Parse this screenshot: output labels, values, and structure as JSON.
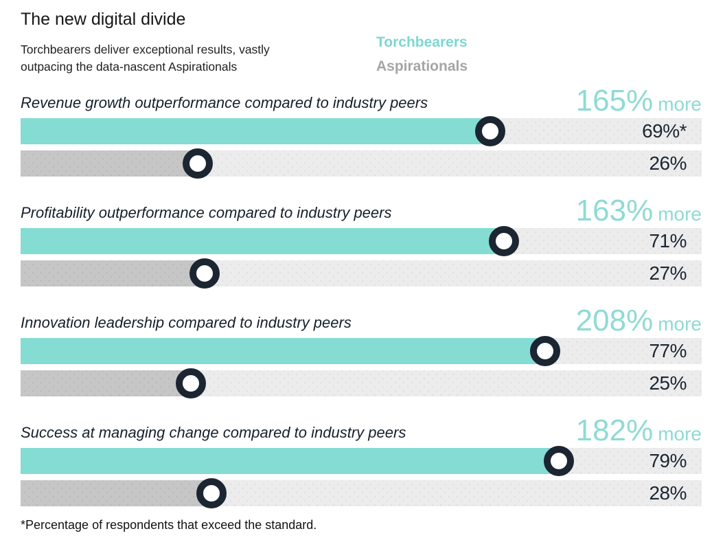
{
  "page": {
    "title": "The new digital divide",
    "subtitle_lines": [
      "Torchbearers deliver exceptional results, vastly",
      "outpacing the data-nascent Aspirationals"
    ],
    "footnote": "*Percentage of respondents that exceed the standard."
  },
  "legend": {
    "torchbearers": "Torchbearers",
    "aspirationals": "Aspirationals"
  },
  "colors": {
    "torchbearer_teal": "#84dcd3",
    "uplift_teal": "#8edbd4",
    "aspirational_gray_fill": "#c6c6c6",
    "legend_gray": "#a5a5a5",
    "bar_track_gray": "#ececec",
    "marker_ink_navy": "#1b2632"
  },
  "chart_data": {
    "type": "bar",
    "orientation": "horizontal",
    "unit": "percent",
    "value_axis_range": [
      0,
      100
    ],
    "grid": false,
    "legend_position": "top-center",
    "series_names": [
      "Torchbearers",
      "Aspirationals"
    ],
    "metrics": [
      {
        "label": "Revenue growth outperformance compared to industry peers",
        "uplift_value": "165%",
        "uplift_suffix": "more",
        "torchbearers_pct": 69,
        "torchbearers_value_label": "69%*",
        "aspirationals_pct": 26,
        "aspirationals_value_label": "26%"
      },
      {
        "label": "Profitability outperformance compared to industry peers",
        "uplift_value": "163%",
        "uplift_suffix": "more",
        "torchbearers_pct": 71,
        "torchbearers_value_label": "71%",
        "aspirationals_pct": 27,
        "aspirationals_value_label": "27%"
      },
      {
        "label": "Innovation leadership compared to industry peers",
        "uplift_value": "208%",
        "uplift_suffix": "more",
        "torchbearers_pct": 77,
        "torchbearers_value_label": "77%",
        "aspirationals_pct": 25,
        "aspirationals_value_label": "25%"
      },
      {
        "label": "Success at managing change compared to industry peers",
        "uplift_value": "182%",
        "uplift_suffix": "more",
        "torchbearers_pct": 79,
        "torchbearers_value_label": "79%",
        "aspirationals_pct": 28,
        "aspirationals_value_label": "28%"
      }
    ]
  }
}
